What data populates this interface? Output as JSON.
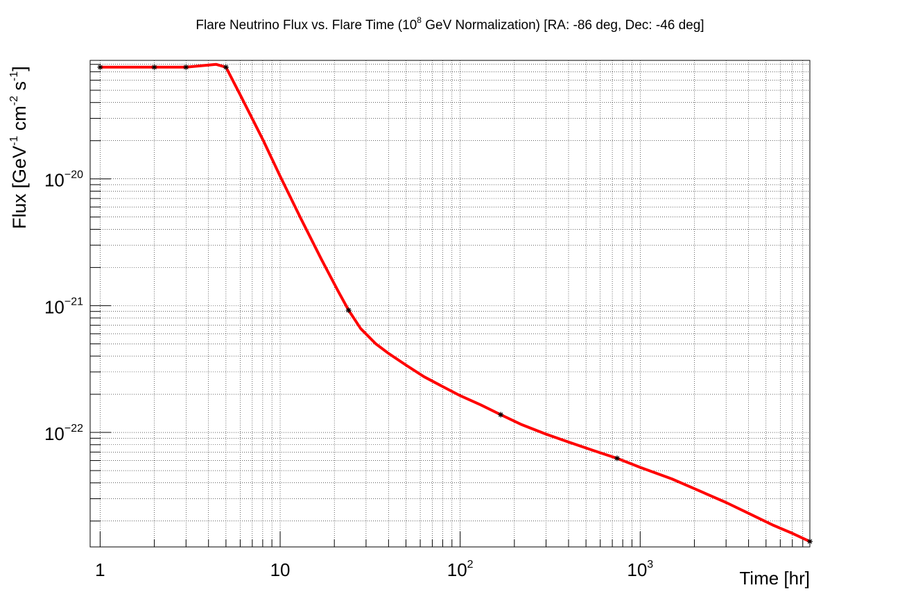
{
  "chart_data": {
    "type": "line",
    "title": {
      "prefix": "Flare Neutrino Flux vs. Flare Time (10",
      "exp": "8",
      "suffix": " GeV Normalization) [RA: -86 deg, Dec: -46 deg]"
    },
    "xlabel": "Time [hr]",
    "ylabel": {
      "parts": [
        "Flux [GeV",
        "-1",
        " cm",
        "-2",
        " s",
        "-1",
        "]"
      ]
    },
    "x_scale": "log",
    "y_scale": "log",
    "xlim": [
      0.88,
      8760
    ],
    "ylim": [
      1.25e-23,
      8.6e-20
    ],
    "grid": true,
    "x_ticks": [
      {
        "value": 1,
        "base": "1",
        "exp": ""
      },
      {
        "value": 10,
        "base": "10",
        "exp": ""
      },
      {
        "value": 100,
        "base": "10",
        "exp": "2"
      },
      {
        "value": 1000,
        "base": "10",
        "exp": "3"
      }
    ],
    "y_ticks": [
      {
        "value": 1e-20,
        "base": "10",
        "exp": "−20"
      },
      {
        "value": 1e-21,
        "base": "10",
        "exp": "−21"
      },
      {
        "value": 1e-22,
        "base": "10",
        "exp": "−22"
      }
    ],
    "series": [
      {
        "color": "#ff0000",
        "curve_x": [
          1,
          2,
          3,
          4.4,
          5,
          6,
          8,
          10,
          13,
          17,
          21,
          24,
          28,
          34,
          40,
          50,
          63,
          80,
          100,
          130,
          168,
          220,
          300,
          400,
          550,
          744,
          1000,
          1500,
          2000,
          3000,
          4000,
          5500,
          7000,
          8760
        ],
        "curve_y": [
          7.6e-20,
          7.6e-20,
          7.6e-20,
          8e-20,
          7.6e-20,
          4.6e-20,
          2.05e-20,
          1.05e-20,
          4.9e-21,
          2.3e-21,
          1.3e-21,
          9.2e-22,
          6.6e-22,
          5e-22,
          4.2e-22,
          3.4e-22,
          2.75e-22,
          2.3e-22,
          1.95e-22,
          1.65e-22,
          1.38e-22,
          1.15e-22,
          9.7e-23,
          8.4e-23,
          7.2e-23,
          6.25e-23,
          5.3e-23,
          4.3e-23,
          3.6e-23,
          2.8e-23,
          2.3e-23,
          1.85e-23,
          1.6e-23,
          1.38e-23
        ]
      }
    ],
    "markers": {
      "x": [
        1,
        2,
        3,
        5,
        24,
        168,
        744,
        8760
      ],
      "y": [
        7.6e-20,
        7.6e-20,
        7.6e-20,
        7.6e-20,
        9.2e-22,
        1.38e-22,
        6.25e-23,
        1.38e-23
      ]
    }
  }
}
